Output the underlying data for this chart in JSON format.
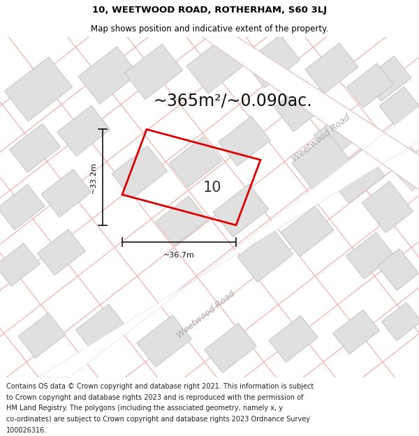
{
  "title_line1": "10, WEETWOOD ROAD, ROTHERHAM, S60 3LJ",
  "title_line2": "Map shows position and indicative extent of the property.",
  "area_text": "~365m²/~0.090ac.",
  "width_label": "~36.7m",
  "height_label": "~33.2m",
  "number_label": "10",
  "road_label_upper": "Weetwood Road",
  "road_label_lower": "Weetwood Road",
  "footer_lines": [
    "Contains OS data © Crown copyright and database right 2021. This information is subject",
    "to Crown copyright and database rights 2023 and is reproduced with the permission of",
    "HM Land Registry. The polygons (including the associated geometry, namely x, y",
    "co-ordinates) are subject to Crown copyright and database rights 2023 Ordnance Survey",
    "100026316."
  ],
  "map_bg": "#f5f5f5",
  "building_fill": "#e0e0e0",
  "building_edge": "#c8c8c8",
  "building_lw": 0.8,
  "road_line_color": "#f0b8b8",
  "road_line_lw": 1.0,
  "road_fill": "#ffffff",
  "highlight_color": "#dd0000",
  "highlight_lw": 2.0,
  "dim_color": "#111111",
  "dim_lw": 1.2,
  "road_label_color": "#aaaaaa",
  "title_fs": 9.5,
  "subtitle_fs": 8.5,
  "area_fs": 17,
  "dim_fs": 8,
  "num_fs": 15,
  "road_label_fs": 9,
  "footer_fs": 7.0
}
